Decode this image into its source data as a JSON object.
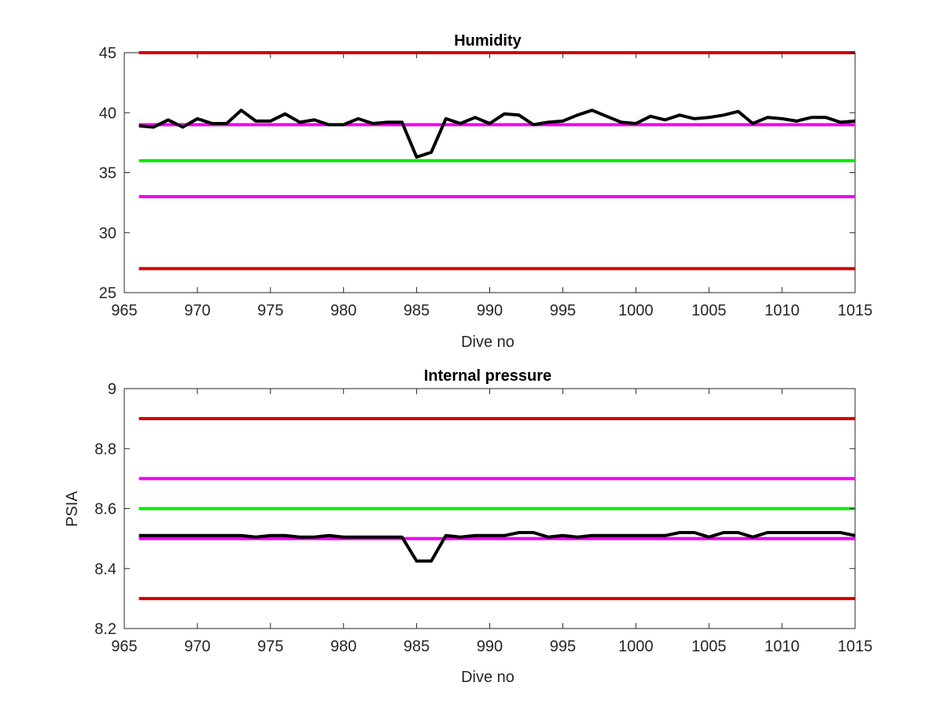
{
  "colors": {
    "limit_red": "#d00000",
    "limit_magenta": "#ee00ee",
    "target_green": "#00ee00",
    "data_black": "#000000",
    "axis": "#262626"
  },
  "chart_data": [
    {
      "type": "line",
      "title": "Humidity",
      "xlabel": "Dive no",
      "ylabel": "",
      "xlim": [
        965,
        1015
      ],
      "ylim": [
        25,
        45
      ],
      "xticks": [
        965,
        970,
        975,
        980,
        985,
        990,
        995,
        1000,
        1005,
        1010,
        1015
      ],
      "yticks": [
        25,
        30,
        35,
        40,
        45
      ],
      "grid": false,
      "series": [
        {
          "color": "#000000",
          "x": [
            966,
            967,
            968,
            969,
            970,
            971,
            972,
            973,
            974,
            975,
            976,
            977,
            978,
            979,
            980,
            981,
            982,
            983,
            984,
            985,
            986,
            987,
            988,
            989,
            990,
            991,
            992,
            993,
            994,
            995,
            996,
            997,
            998,
            999,
            1000,
            1001,
            1002,
            1003,
            1004,
            1005,
            1006,
            1007,
            1008,
            1009,
            1010,
            1011,
            1012,
            1013,
            1014,
            1015
          ],
          "y": [
            38.9,
            38.8,
            39.4,
            38.8,
            39.5,
            39.1,
            39.1,
            40.2,
            39.3,
            39.3,
            39.9,
            39.2,
            39.4,
            39.0,
            39.0,
            39.5,
            39.1,
            39.2,
            39.2,
            36.3,
            36.7,
            39.5,
            39.1,
            39.6,
            39.1,
            39.9,
            39.8,
            39.0,
            39.2,
            39.3,
            39.8,
            40.2,
            39.7,
            39.2,
            39.1,
            39.7,
            39.4,
            39.8,
            39.5,
            39.6,
            39.8,
            40.1,
            39.1,
            39.6,
            39.5,
            39.3,
            39.6,
            39.6,
            39.2,
            39.3
          ]
        }
      ],
      "hlines": [
        {
          "y": 45,
          "color": "#d00000"
        },
        {
          "y": 39,
          "color": "#ee00ee"
        },
        {
          "y": 36,
          "color": "#00ee00"
        },
        {
          "y": 33,
          "color": "#ee00ee"
        },
        {
          "y": 27,
          "color": "#d00000"
        }
      ]
    },
    {
      "type": "line",
      "title": "Internal pressure",
      "xlabel": "Dive no",
      "ylabel": "PSIA",
      "xlim": [
        965,
        1015
      ],
      "ylim": [
        8.2,
        9.0
      ],
      "xticks": [
        965,
        970,
        975,
        980,
        985,
        990,
        995,
        1000,
        1005,
        1010,
        1015
      ],
      "yticks": [
        8.2,
        8.4,
        8.6,
        8.8,
        9
      ],
      "ytick_labels": [
        "8.2",
        "8.4",
        "8.6",
        "8.8",
        "9"
      ],
      "grid": false,
      "series": [
        {
          "color": "#000000",
          "x": [
            966,
            967,
            968,
            969,
            970,
            971,
            972,
            973,
            974,
            975,
            976,
            977,
            978,
            979,
            980,
            981,
            982,
            983,
            984,
            985,
            986,
            987,
            988,
            989,
            990,
            991,
            992,
            993,
            994,
            995,
            996,
            997,
            998,
            999,
            1000,
            1001,
            1002,
            1003,
            1004,
            1005,
            1006,
            1007,
            1008,
            1009,
            1010,
            1011,
            1012,
            1013,
            1014,
            1015
          ],
          "y": [
            8.51,
            8.51,
            8.51,
            8.51,
            8.51,
            8.51,
            8.51,
            8.51,
            8.505,
            8.51,
            8.51,
            8.505,
            8.505,
            8.51,
            8.505,
            8.505,
            8.505,
            8.505,
            8.505,
            8.425,
            8.425,
            8.51,
            8.505,
            8.51,
            8.51,
            8.51,
            8.52,
            8.52,
            8.505,
            8.51,
            8.505,
            8.51,
            8.51,
            8.51,
            8.51,
            8.51,
            8.51,
            8.52,
            8.52,
            8.505,
            8.52,
            8.52,
            8.505,
            8.52,
            8.52,
            8.52,
            8.52,
            8.52,
            8.52,
            8.51
          ]
        }
      ],
      "hlines": [
        {
          "y": 8.9,
          "color": "#d00000"
        },
        {
          "y": 8.7,
          "color": "#ee00ee"
        },
        {
          "y": 8.6,
          "color": "#00ee00"
        },
        {
          "y": 8.5,
          "color": "#ee00ee"
        },
        {
          "y": 8.3,
          "color": "#d00000"
        }
      ]
    }
  ]
}
